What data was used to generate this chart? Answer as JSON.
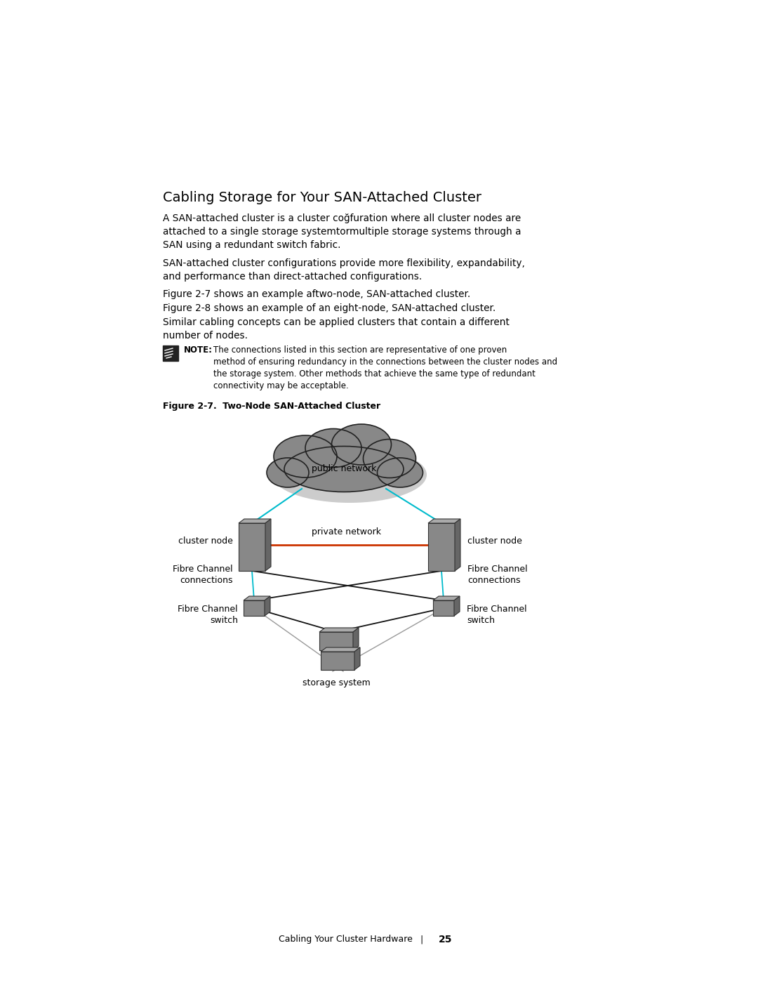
{
  "page_bg": "#ffffff",
  "title": "Cabling Storage for Your SAN-Attached Cluster",
  "body_paragraphs": [
    "A SAN-attached cluster is a cluster coğfuration where all cluster nodes are\nattached to a single storage systemtormultiple storage systems through a\nSAN using a redundant switch fabric.",
    "SAN-attached cluster configurations provide more flexibility, expandability,\nand performance than direct-attached configurations.",
    "Figure 2-7 shows an example aftwo-node, SAN-attached cluster.",
    "Figure 2-8 shows an example of an eight-node, SAN-attached cluster.",
    "Similar cabling concepts can be appliéd clusters that contain a different\nnumber of nodes."
  ],
  "note_bold": "NOTE:",
  "note_body": " The connections listed in this section are representative of one proven\nmethod of ensuring redundancy in the connections between the cluster nodes and\nthe storage system. Other methods that achieve the same type of redundant\nconnectivity may be acceptable.",
  "figure_caption_bold": "Figure 2-7.",
  "figure_caption_rest": "   Two-Node SAN-Attached Cluster",
  "footer_left": "Cabling Your Cluster Hardware",
  "footer_page": "25",
  "cloud_color": "#888888",
  "cloud_edge": "#222222",
  "node_face": "#888888",
  "node_top": "#aaaaaa",
  "node_side": "#666666",
  "node_edge": "#333333",
  "private_net_color": "#cc3300",
  "public_net_color": "#00bbcc",
  "fc_black_color": "#111111",
  "fc_cyan_color": "#00bbcc",
  "storage_gray_color": "#999999",
  "text_color": "#000000"
}
